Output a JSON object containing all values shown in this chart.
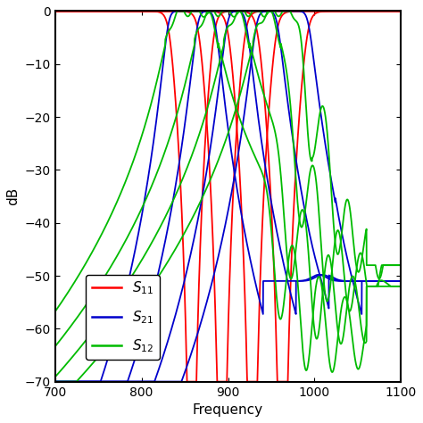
{
  "title": "",
  "xlabel": "Frequency",
  "ylabel": "dB",
  "xlim": [
    700,
    1100
  ],
  "ylim": [
    -70,
    0
  ],
  "xticks": [
    700,
    800,
    900,
    1000,
    1100
  ],
  "yticks": [
    0,
    -10,
    -20,
    -30,
    -40,
    -50,
    -60,
    -70
  ],
  "colors": {
    "S11": "#ff0000",
    "S21": "#0000cc",
    "S12": "#00bb00"
  },
  "background": "#ffffff",
  "linewidth": 1.3,
  "s11_centers": [
    858,
    893,
    928,
    963
  ],
  "s21_centers": [
    858,
    893,
    928,
    963
  ],
  "s12_centers": [
    858,
    893,
    928,
    963
  ],
  "bw": 55
}
